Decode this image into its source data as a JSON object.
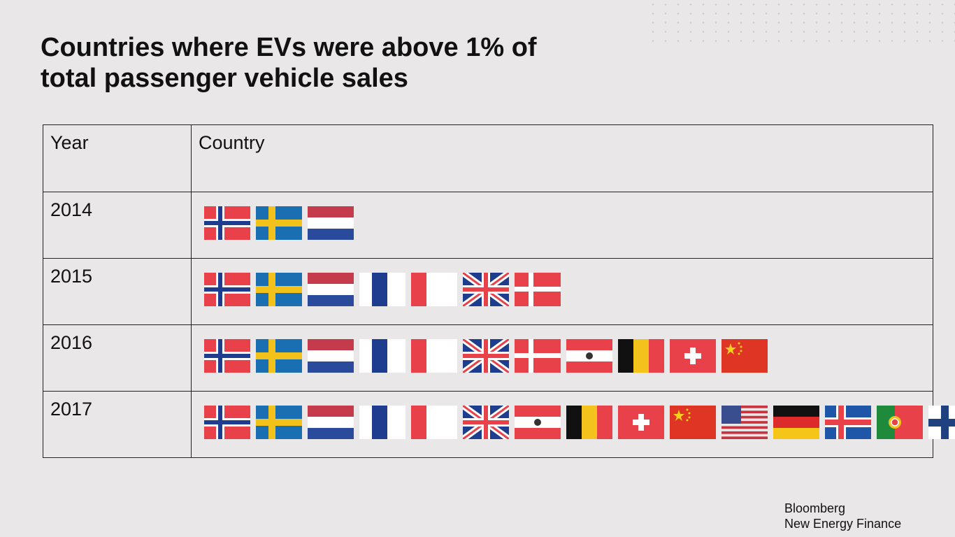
{
  "slide": {
    "title_line1": "Countries where EVs were above 1% of",
    "title_line2": "total passenger vehicle sales"
  },
  "chart_data": {
    "type": "table",
    "columns": [
      "Year",
      "Country"
    ],
    "rows": [
      {
        "year": "2014",
        "countries": [
          "norway",
          "sweden",
          "netherlands"
        ]
      },
      {
        "year": "2015",
        "countries": [
          "norway",
          "sweden",
          "netherlands",
          "france",
          "united-kingdom",
          "denmark"
        ]
      },
      {
        "year": "2016",
        "countries": [
          "norway",
          "sweden",
          "netherlands",
          "france",
          "united-kingdom",
          "denmark",
          "austria",
          "belgium",
          "switzerland",
          "china"
        ]
      },
      {
        "year": "2017",
        "countries": [
          "norway",
          "sweden",
          "netherlands",
          "france",
          "united-kingdom",
          "austria",
          "belgium",
          "switzerland",
          "china",
          "united-states",
          "germany",
          "iceland",
          "portugal",
          "finland"
        ]
      }
    ]
  },
  "brand": {
    "line1": "Bloomberg",
    "line2": "New Energy Finance"
  }
}
